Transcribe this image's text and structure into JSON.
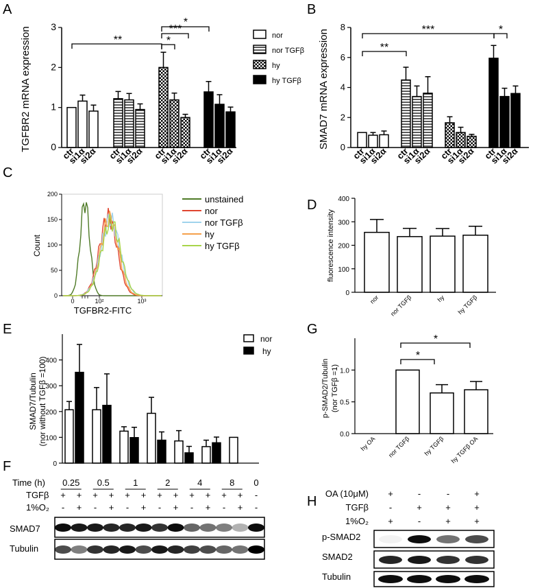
{
  "panel_labels": {
    "A": "A",
    "B": "B",
    "C": "C",
    "D": "D",
    "E": "E",
    "F": "F",
    "G": "G",
    "H": "H"
  },
  "sigs": {
    "one": "*",
    "two": "**",
    "three": "***"
  },
  "legend_abhy": [
    {
      "key": "nor",
      "label": "nor"
    },
    {
      "key": "norT",
      "label": "nor TGFβ"
    },
    {
      "key": "hy",
      "label": "hy"
    },
    {
      "key": "hyT",
      "label": "hy TGFβ"
    }
  ],
  "chart_data": [
    {
      "id": "A",
      "type": "bar",
      "title": "",
      "ylabel": "TGFBR2 mRNA expression",
      "ylim": [
        0,
        3
      ],
      "yticks": [
        "0",
        "1",
        "2",
        "3"
      ],
      "categories": [
        "ctr",
        "si1α",
        "si2α",
        "ctr",
        "si1α",
        "si2α",
        "ctr",
        "si1α",
        "si2α",
        "ctr",
        "si1α",
        "si2α"
      ],
      "groups": [
        "nor",
        "nor TGFβ",
        "hy",
        "hy TGFβ"
      ],
      "values": [
        1.0,
        1.16,
        0.91,
        1.22,
        1.19,
        0.95,
        2.0,
        1.19,
        0.75,
        1.39,
        1.08,
        0.89
      ],
      "errors": [
        0,
        0.15,
        0.15,
        0.18,
        0.16,
        0.14,
        0.38,
        0.17,
        0.08,
        0.26,
        0.24,
        0.12
      ]
    },
    {
      "id": "B",
      "type": "bar",
      "ylabel": "SMAD7 mRNA expression",
      "ylim": [
        0,
        8
      ],
      "yticks": [
        "0",
        "2",
        "4",
        "6",
        "8"
      ],
      "categories": [
        "ctr",
        "si1α",
        "si2α",
        "ctr",
        "si1α",
        "si2α",
        "ctr",
        "si1α",
        "si2α",
        "ctr",
        "si1α",
        "si2α"
      ],
      "groups": [
        "nor",
        "nor TGFβ",
        "hy",
        "hy TGFβ"
      ],
      "values": [
        1.0,
        0.82,
        0.85,
        4.5,
        3.4,
        3.62,
        1.65,
        1.0,
        0.75,
        5.95,
        3.4,
        3.6
      ],
      "errors": [
        0,
        0.18,
        0.25,
        0.85,
        0.7,
        1.1,
        0.4,
        0.35,
        0.13,
        0.85,
        0.55,
        0.5
      ]
    },
    {
      "id": "C",
      "type": "line",
      "xlabel": "TGFBR2-FITC",
      "ylabel": "Count",
      "ylim": [
        0,
        200
      ],
      "yticks": [
        "0",
        "50",
        "100",
        "150",
        "200"
      ],
      "xticks": [
        "0",
        "10²",
        "10³"
      ],
      "series": [
        {
          "name": "unstained",
          "color": "#4e7a26"
        },
        {
          "name": "nor",
          "color": "#e0452f"
        },
        {
          "name": "nor TGFβ",
          "color": "#9fd3ec"
        },
        {
          "name": "hy",
          "color": "#f5a04a"
        },
        {
          "name": "hy TGFβ",
          "color": "#a8d44a"
        }
      ]
    },
    {
      "id": "D",
      "type": "bar",
      "ylabel": "fluorescence intensity",
      "ylim": [
        0,
        400
      ],
      "yticks": [
        "0",
        "100",
        "200",
        "300",
        "400"
      ],
      "categories": [
        "nor",
        "nor TGFβ",
        "hy",
        "hy TGFβ"
      ],
      "values": [
        255,
        237,
        239,
        243
      ],
      "errors": [
        55,
        35,
        32,
        38
      ]
    },
    {
      "id": "E",
      "type": "bar",
      "ylabel": "SMAD7/Tubulin",
      "ylabel2": "(nor without TGFβ =100)",
      "ylim": [
        0,
        500
      ],
      "yticks": [
        "0",
        "100",
        "200",
        "300",
        "400"
      ],
      "series": [
        {
          "name": "nor",
          "values": [
            207,
            207,
            124,
            193,
            86,
            64,
            100
          ],
          "errors": [
            32,
            86,
            17,
            62,
            40,
            25,
            0
          ]
        },
        {
          "name": "hy",
          "values": [
            352,
            224,
            99,
            89,
            40,
            79,
            null
          ],
          "errors": [
            108,
            122,
            40,
            32,
            25,
            22,
            0
          ]
        }
      ]
    },
    {
      "id": "G",
      "type": "bar",
      "ylabel": "p-SMAD2/Tubulin",
      "ylabel2": "(nor TGFβ =1)",
      "ylim": [
        0,
        1.5
      ],
      "yticks": [
        "0.0",
        "0.5",
        "1.0"
      ],
      "categories": [
        "hy OA",
        "nor TGFβ",
        "hy TGFβ",
        "hy TGFβ OA"
      ],
      "values": [
        0,
        1.0,
        0.64,
        0.69
      ],
      "errors": [
        0,
        0,
        0.13,
        0.13
      ]
    }
  ],
  "blot_F": {
    "time_label": "Time (h)",
    "times": [
      "0.25",
      "0.5",
      "1",
      "2",
      "4",
      "8",
      "0"
    ],
    "row_labels": [
      "TGFβ",
      "1%O₂"
    ],
    "tgf": [
      "+",
      "+",
      "+",
      "+",
      "+",
      "+",
      "+",
      "+",
      "+",
      "+",
      "+",
      "+",
      "-"
    ],
    "o2": [
      "-",
      "+",
      "-",
      "+",
      "-",
      "+",
      "-",
      "+",
      "-",
      "+",
      "-",
      "+",
      "-"
    ],
    "bands": [
      "SMAD7",
      "Tubulin"
    ]
  },
  "blot_H": {
    "rows": [
      {
        "label": "OA (10μM)",
        "signs": [
          "+",
          "-",
          "-",
          "+"
        ]
      },
      {
        "label": "TGFβ",
        "signs": [
          "-",
          "+",
          "+",
          "+"
        ]
      },
      {
        "label": "1%O₂",
        "signs": [
          "+",
          "-",
          "+",
          "+"
        ]
      }
    ],
    "bands": [
      "p-SMAD2",
      "SMAD2",
      "Tubulin"
    ]
  }
}
